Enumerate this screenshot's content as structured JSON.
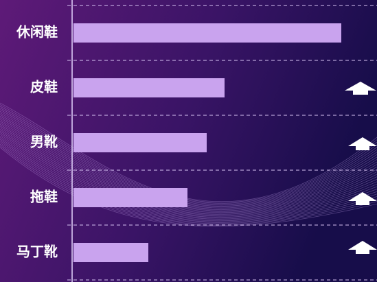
{
  "chart_data": {
    "type": "bar",
    "orientation": "horizontal",
    "categories": [
      "休闲鞋",
      "皮鞋",
      "男靴",
      "拖鞋",
      "马丁靴"
    ],
    "values": [
      390,
      220,
      194,
      166,
      109
    ],
    "color": "#c9a3ee",
    "xlim": [
      0,
      400
    ]
  }
}
